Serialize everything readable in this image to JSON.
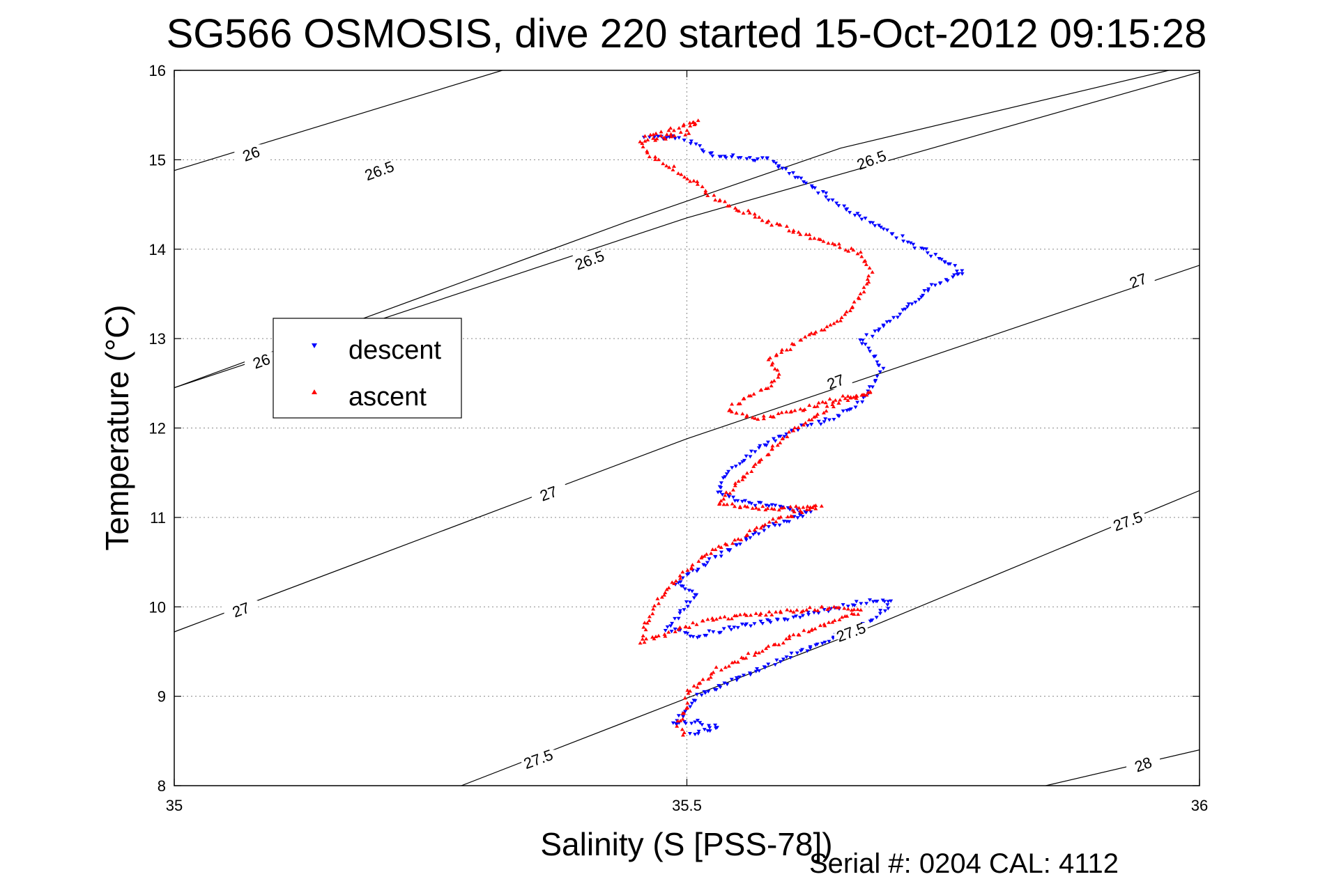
{
  "chart_data": {
    "type": "scatter",
    "title": "SG566 OSMOSIS, dive 220 started 15-Oct-2012 09:15:28",
    "xlabel": "Salinity (S [PSS-78])",
    "ylabel": "Temperature (°C)",
    "xlim": [
      35,
      36
    ],
    "ylim": [
      8,
      16
    ],
    "xticks": [
      "35",
      "35.5",
      "36"
    ],
    "yticks": [
      "8",
      "9",
      "10",
      "11",
      "12",
      "13",
      "14",
      "15",
      "16"
    ],
    "grid": true,
    "legend_position": "left",
    "footer": "Serial #: 0204  CAL: 4112",
    "colors": {
      "descent": "#0000ff",
      "ascent": "#ff0000",
      "contour": "#000000",
      "grid": "#888888"
    },
    "contours": [
      {
        "label": "26",
        "points": [
          [
            35,
            14.88
          ],
          [
            35.32,
            16.0
          ]
        ]
      },
      {
        "label": "26",
        "points": [
          [
            35,
            12.45
          ],
          [
            35.44,
            14.3
          ],
          [
            35.65,
            15.13
          ],
          [
            35.97,
            16.0
          ]
        ]
      },
      {
        "label": "26.5",
        "points": [
          [
            35,
            12.45
          ],
          [
            35.5,
            14.35
          ],
          [
            36,
            15.98
          ]
        ]
      },
      {
        "label": "27",
        "points": [
          [
            35,
            9.72
          ],
          [
            35.5,
            11.88
          ],
          [
            36,
            13.82
          ]
        ]
      },
      {
        "label": "27.5",
        "points": [
          [
            35.28,
            8.0
          ],
          [
            35.68,
            9.78
          ],
          [
            36,
            11.3
          ]
        ]
      },
      {
        "label": "28",
        "points": [
          [
            35.85,
            8.0
          ],
          [
            36,
            8.4
          ]
        ]
      }
    ],
    "contour_labels": [
      {
        "text": "26",
        "x": 35.075,
        "y": 15.07
      },
      {
        "text": "26.5",
        "x": 35.2,
        "y": 14.88
      },
      {
        "text": "26.5",
        "x": 35.405,
        "y": 13.88
      },
      {
        "text": "26",
        "x": 35.085,
        "y": 12.75
      },
      {
        "text": "26.5",
        "x": 35.68,
        "y": 15.0
      },
      {
        "text": "27",
        "x": 35.365,
        "y": 11.27
      },
      {
        "text": "27",
        "x": 35.065,
        "y": 9.97
      },
      {
        "text": "27",
        "x": 35.645,
        "y": 12.52
      },
      {
        "text": "27",
        "x": 35.94,
        "y": 13.65
      },
      {
        "text": "27.5",
        "x": 35.355,
        "y": 8.3
      },
      {
        "text": "27.5",
        "x": 35.66,
        "y": 9.72
      },
      {
        "text": "27.5",
        "x": 35.93,
        "y": 10.96
      },
      {
        "text": "28",
        "x": 35.945,
        "y": 8.24
      }
    ],
    "series": [
      {
        "name": "descent",
        "marker": "triangle-down",
        "path": [
          [
            35.46,
            15.25
          ],
          [
            35.49,
            15.25
          ],
          [
            35.53,
            15.05
          ],
          [
            35.58,
            15.0
          ],
          [
            35.66,
            14.42
          ],
          [
            35.73,
            14.0
          ],
          [
            35.77,
            13.74
          ],
          [
            35.74,
            13.6
          ],
          [
            35.71,
            13.3
          ],
          [
            35.69,
            13.15
          ],
          [
            35.68,
            13.05
          ],
          [
            35.67,
            12.98
          ],
          [
            35.68,
            12.85
          ],
          [
            35.69,
            12.65
          ],
          [
            35.68,
            12.45
          ],
          [
            35.665,
            12.25
          ],
          [
            35.64,
            12.1
          ],
          [
            35.61,
            12.0
          ],
          [
            35.58,
            11.85
          ],
          [
            35.56,
            11.7
          ],
          [
            35.54,
            11.5
          ],
          [
            35.53,
            11.3
          ],
          [
            35.55,
            11.18
          ],
          [
            35.59,
            11.12
          ],
          [
            35.62,
            11.05
          ],
          [
            35.58,
            10.9
          ],
          [
            35.55,
            10.7
          ],
          [
            35.52,
            10.5
          ],
          [
            35.5,
            10.35
          ],
          [
            35.49,
            10.25
          ],
          [
            35.51,
            10.15
          ],
          [
            35.495,
            9.95
          ],
          [
            35.48,
            9.75
          ],
          [
            35.51,
            9.68
          ],
          [
            35.55,
            9.78
          ],
          [
            35.6,
            9.88
          ],
          [
            35.65,
            10.0
          ],
          [
            35.68,
            10.08
          ],
          [
            35.7,
            10.05
          ],
          [
            35.68,
            9.85
          ],
          [
            35.65,
            9.7
          ],
          [
            35.6,
            9.45
          ],
          [
            35.55,
            9.2
          ],
          [
            35.51,
            9.0
          ],
          [
            35.5,
            8.85
          ],
          [
            35.485,
            8.68
          ],
          [
            35.51,
            8.72
          ],
          [
            35.53,
            8.65
          ],
          [
            35.51,
            8.6
          ],
          [
            35.5,
            8.55
          ]
        ]
      },
      {
        "name": "ascent",
        "marker": "triangle-up",
        "path": [
          [
            35.46,
            15.25
          ],
          [
            35.48,
            15.3
          ],
          [
            35.51,
            15.45
          ],
          [
            35.5,
            15.3
          ],
          [
            35.455,
            15.2
          ],
          [
            35.465,
            15.05
          ],
          [
            35.5,
            14.8
          ],
          [
            35.53,
            14.55
          ],
          [
            35.58,
            14.3
          ],
          [
            35.67,
            13.95
          ],
          [
            35.68,
            13.75
          ],
          [
            35.67,
            13.5
          ],
          [
            35.66,
            13.3
          ],
          [
            35.63,
            13.1
          ],
          [
            35.6,
            12.9
          ],
          [
            35.58,
            12.75
          ],
          [
            35.59,
            12.6
          ],
          [
            35.58,
            12.45
          ],
          [
            35.56,
            12.35
          ],
          [
            35.54,
            12.2
          ],
          [
            35.57,
            12.1
          ],
          [
            35.61,
            12.2
          ],
          [
            35.64,
            12.3
          ],
          [
            35.67,
            12.38
          ],
          [
            35.68,
            12.4
          ],
          [
            35.65,
            12.3
          ],
          [
            35.62,
            12.1
          ],
          [
            35.59,
            11.85
          ],
          [
            35.57,
            11.6
          ],
          [
            35.55,
            11.4
          ],
          [
            35.53,
            11.15
          ],
          [
            35.56,
            11.1
          ],
          [
            35.6,
            11.1
          ],
          [
            35.63,
            11.12
          ],
          [
            35.58,
            10.95
          ],
          [
            35.55,
            10.75
          ],
          [
            35.52,
            10.6
          ],
          [
            35.5,
            10.4
          ],
          [
            35.48,
            10.2
          ],
          [
            35.47,
            10.0
          ],
          [
            35.46,
            9.8
          ],
          [
            35.455,
            9.6
          ],
          [
            35.48,
            9.7
          ],
          [
            35.52,
            9.85
          ],
          [
            35.56,
            9.9
          ],
          [
            35.6,
            9.95
          ],
          [
            35.65,
            10.0
          ],
          [
            35.67,
            9.95
          ],
          [
            35.62,
            9.75
          ],
          [
            35.58,
            9.55
          ],
          [
            35.53,
            9.3
          ],
          [
            35.5,
            9.05
          ],
          [
            35.5,
            8.85
          ],
          [
            35.49,
            8.7
          ],
          [
            35.5,
            8.55
          ]
        ]
      }
    ]
  }
}
